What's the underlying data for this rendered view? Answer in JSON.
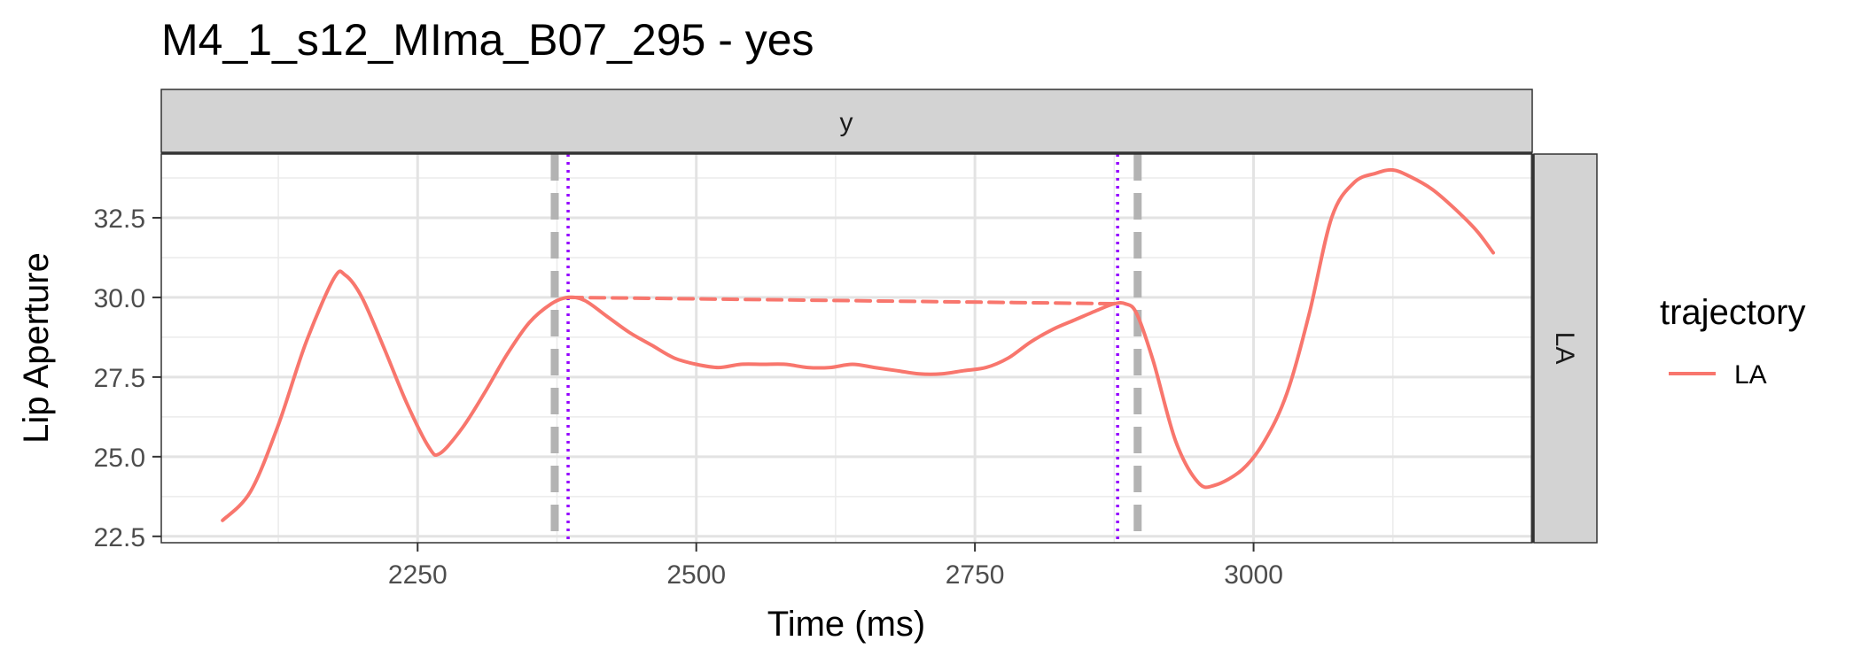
{
  "chart_data": {
    "type": "line",
    "title": "M4_1_s12_MIma_B07_295 - yes",
    "xlabel": "Time (ms)",
    "ylabel": "Lip Aperture",
    "facet_top_label": "y",
    "facet_right_label": "LA",
    "xlim": [
      2020,
      3250
    ],
    "ylim": [
      22.3,
      34.5
    ],
    "x_ticks": [
      2250,
      2500,
      2750,
      3000
    ],
    "y_ticks": [
      22.5,
      25.0,
      27.5,
      30.0,
      32.5
    ],
    "x_tick_labels": [
      "2250",
      "2500",
      "2750",
      "3000"
    ],
    "y_tick_labels": [
      "22.5",
      "25.0",
      "27.5",
      "30.0",
      "32.5"
    ],
    "grid": true,
    "legend": {
      "title": "trajectory",
      "position": "right",
      "entries": [
        "LA"
      ]
    },
    "colors": {
      "series": "#f8766d",
      "boundary": "#b3b3b3",
      "marker": "#9400ff"
    },
    "series": [
      {
        "name": "LA",
        "style": "solid",
        "x": [
          2075,
          2100,
          2125,
          2150,
          2175,
          2185,
          2200,
          2220,
          2240,
          2260,
          2270,
          2290,
          2310,
          2330,
          2350,
          2370,
          2385,
          2400,
          2420,
          2440,
          2460,
          2480,
          2500,
          2520,
          2540,
          2560,
          2580,
          2600,
          2620,
          2640,
          2660,
          2680,
          2700,
          2720,
          2740,
          2760,
          2780,
          2800,
          2820,
          2840,
          2860,
          2875,
          2885,
          2895,
          2910,
          2930,
          2950,
          2965,
          2990,
          3010,
          3030,
          3050,
          3070,
          3090,
          3110,
          3125,
          3140,
          3160,
          3180,
          3200,
          3215
        ],
        "y": [
          23.0,
          23.9,
          26.0,
          28.6,
          30.6,
          30.7,
          30.0,
          28.4,
          26.7,
          25.3,
          25.1,
          25.9,
          27.0,
          28.2,
          29.2,
          29.8,
          30.0,
          29.9,
          29.4,
          28.9,
          28.5,
          28.1,
          27.9,
          27.8,
          27.9,
          27.9,
          27.9,
          27.8,
          27.8,
          27.9,
          27.8,
          27.7,
          27.6,
          27.6,
          27.7,
          27.8,
          28.1,
          28.6,
          29.0,
          29.3,
          29.6,
          29.8,
          29.8,
          29.5,
          28.0,
          25.5,
          24.2,
          24.1,
          24.6,
          25.5,
          27.0,
          29.5,
          32.5,
          33.6,
          33.9,
          34.0,
          33.8,
          33.4,
          32.8,
          32.1,
          31.4
        ]
      },
      {
        "name": "LA",
        "style": "dashed",
        "x": [
          2385,
          2880
        ],
        "y": [
          30.0,
          29.8
        ]
      }
    ],
    "boundaries": [
      2373,
      2896
    ],
    "markers": [
      2385,
      2878
    ]
  }
}
